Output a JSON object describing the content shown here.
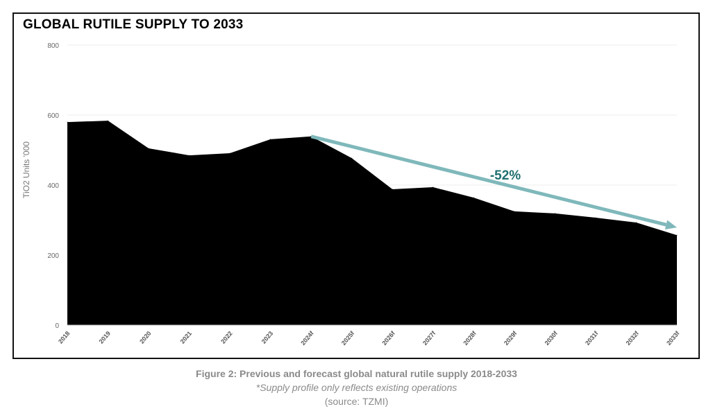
{
  "chart_data": {
    "type": "area",
    "title": "GLOBAL RUTILE SUPPLY TO 2033",
    "ylabel": "TiO2 Units '000",
    "xlabel": "",
    "ylim": [
      0,
      800
    ],
    "yticks": [
      "0",
      "200",
      "400",
      "600",
      "800"
    ],
    "grid": true,
    "categories": [
      "2018",
      "2019",
      "2020",
      "2021",
      "2022",
      "2023",
      "2024f",
      "2025f",
      "2026f",
      "2027f",
      "2028f",
      "2029f",
      "2030f",
      "2031f",
      "2032f",
      "2033f"
    ],
    "values": [
      580,
      584,
      505,
      485,
      491,
      531,
      539,
      477,
      388,
      394,
      364,
      325,
      319,
      307,
      293,
      257
    ],
    "area_color": "#000000",
    "annotation": {
      "text": "-52%",
      "from_category": "2024f",
      "from_value": 539,
      "to_category": "2033f",
      "to_value": 279,
      "arrow_color": "#7fb8ba",
      "text_color": "#1f6f70"
    }
  },
  "caption": {
    "line1": "Figure 2: Previous and forecast global natural rutile supply 2018-2033",
    "line2": "*Supply profile only reflects existing operations",
    "line3": "(source: TZMI)"
  }
}
